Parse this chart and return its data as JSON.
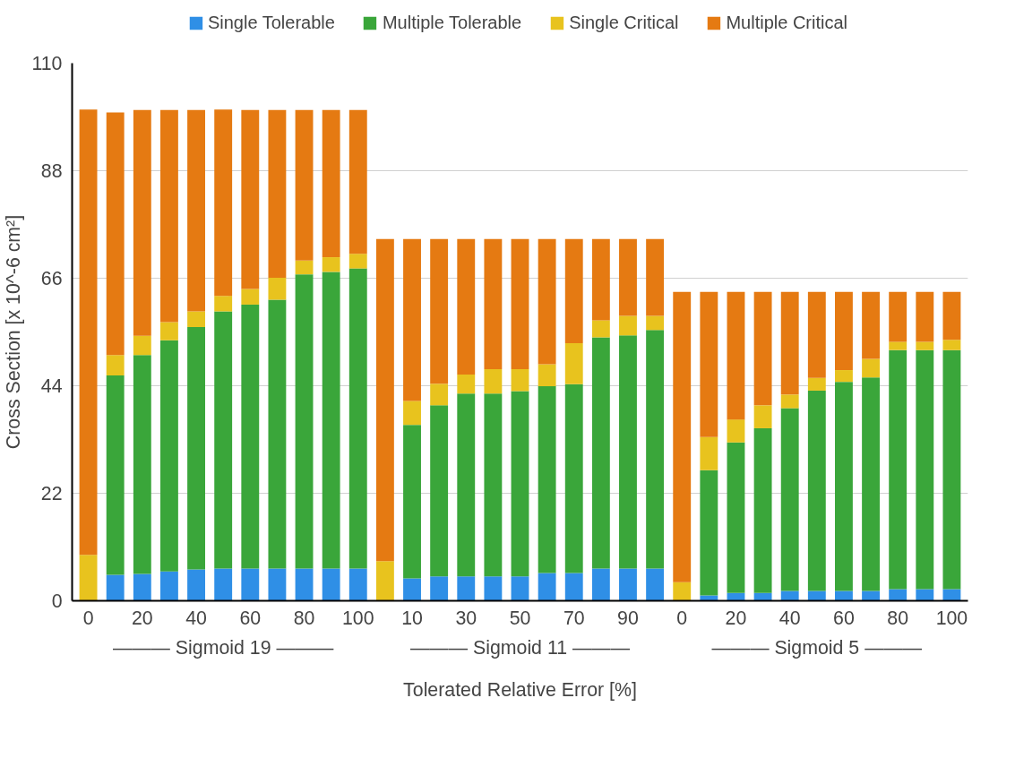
{
  "chart_data": {
    "type": "bar",
    "stacked": true,
    "xlabel": "Tolerated Relative Error [%]",
    "ylabel": "Cross Section [x 10^-6 cm²]",
    "categories": [
      "0",
      null,
      "20",
      null,
      "40",
      null,
      "60",
      null,
      "80",
      null,
      "100",
      null,
      "10",
      null,
      "30",
      null,
      "50",
      null,
      "70",
      null,
      "90",
      null,
      "0",
      null,
      "20",
      null,
      "40",
      null,
      "60",
      null,
      "80",
      null,
      "100"
    ],
    "series": [
      {
        "name": "Single Tolerable",
        "color": "#2f8fe6",
        "values": [
          0,
          5.3,
          5.5,
          6.0,
          6.4,
          6.6,
          6.6,
          6.6,
          6.6,
          6.6,
          6.6,
          0,
          4.6,
          5.0,
          5.0,
          5.0,
          5.0,
          5.7,
          5.7,
          6.6,
          6.6,
          6.6,
          0,
          1.1,
          1.6,
          1.6,
          2.0,
          2.0,
          2.0,
          2.0,
          2.4,
          2.4,
          2.4
        ]
      },
      {
        "name": "Multiple Tolerable",
        "color": "#3aa63a",
        "values": [
          0,
          40.8,
          44.8,
          47.3,
          49.6,
          52.6,
          54.0,
          55.0,
          60.2,
          60.7,
          61.4,
          0,
          31.4,
          35.0,
          37.4,
          37.4,
          37.9,
          38.2,
          38.6,
          47.3,
          47.7,
          48.8,
          0,
          25.6,
          30.8,
          33.7,
          37.4,
          41.0,
          42.8,
          43.7,
          48.9,
          48.9,
          48.9
        ]
      },
      {
        "name": "Single Critical",
        "color": "#e8c31e",
        "values": [
          9.4,
          4.2,
          3.9,
          3.7,
          3.2,
          3.2,
          3.2,
          4.5,
          2.8,
          3.0,
          3.0,
          8.1,
          4.9,
          4.4,
          3.9,
          5.0,
          4.5,
          4.5,
          8.4,
          3.5,
          4.0,
          2.9,
          3.8,
          6.8,
          4.7,
          4.7,
          2.8,
          2.6,
          2.4,
          3.8,
          1.7,
          1.7,
          2.1
        ]
      },
      {
        "name": "Multiple Critical",
        "color": "#e57a12",
        "values": [
          91.1,
          49.6,
          46.2,
          43.4,
          41.2,
          38.1,
          36.6,
          34.3,
          30.8,
          30.1,
          29.4,
          65.9,
          33.1,
          29.6,
          27.7,
          26.6,
          26.6,
          25.6,
          21.3,
          16.6,
          15.7,
          15.7,
          59.4,
          29.7,
          26.1,
          23.2,
          21.0,
          17.6,
          16.0,
          13.7,
          10.2,
          10.2,
          9.8
        ]
      }
    ],
    "ylim": [
      0,
      110
    ],
    "yticks": [
      0,
      22,
      44,
      66,
      88,
      110
    ],
    "grid": "y",
    "legend": "top",
    "annotations": [
      "——— Sigmoid 19 ———",
      "——— Sigmoid 11 ———",
      "——— Sigmoid 5 ———"
    ]
  }
}
